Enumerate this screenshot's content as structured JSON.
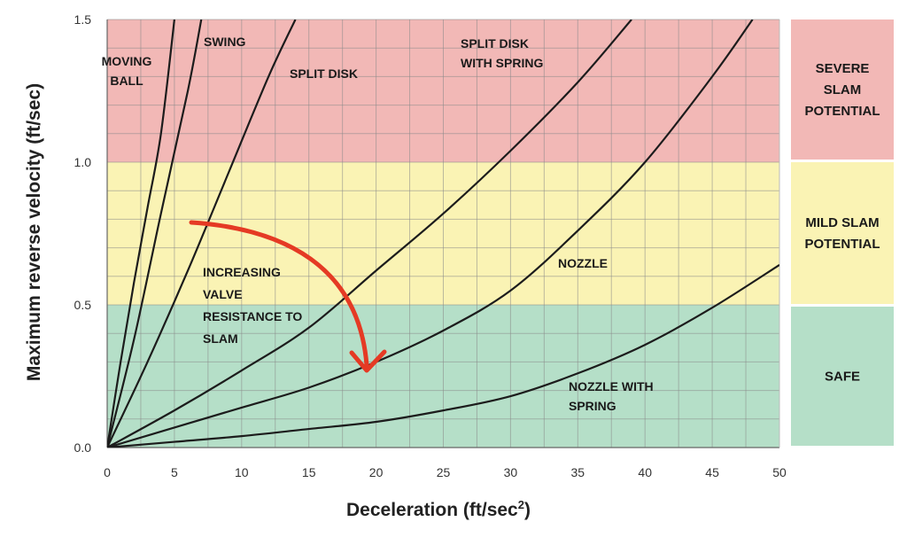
{
  "chart_data": {
    "type": "line",
    "xlabel": "Deceleration (ft/sec",
    "xlabel_sup": "2",
    "xlabel_tail": ")",
    "ylabel": "Maximum reverse velocity (ft/sec)",
    "xlim": [
      0,
      50
    ],
    "ylim": [
      0,
      1.5
    ],
    "x_ticks": [
      0,
      5,
      10,
      15,
      20,
      25,
      30,
      35,
      40,
      45,
      50
    ],
    "x_tick_labels": [
      "0",
      "5",
      "10",
      "15",
      "20",
      "25",
      "30",
      "35",
      "40",
      "45",
      "50"
    ],
    "y_ticks": [
      0,
      0.5,
      1.0,
      1.5
    ],
    "y_tick_labels": [
      "0.0",
      "0.5",
      "1.0",
      "1.5"
    ],
    "grid": true,
    "zones": [
      {
        "from": 1.0,
        "to": 1.5,
        "color": "#f2b8b6",
        "label_lines": [
          "SEVERE",
          "SLAM",
          "POTENTIAL"
        ]
      },
      {
        "from": 0.5,
        "to": 1.0,
        "color": "#faf3b4",
        "label_lines": [
          "MILD SLAM",
          "POTENTIAL"
        ]
      },
      {
        "from": 0.0,
        "to": 0.5,
        "color": "#b5dfc8",
        "label_lines": [
          "SAFE"
        ]
      }
    ],
    "series": [
      {
        "label_lines": [
          "MOVING",
          "BALL"
        ],
        "x": [
          0,
          1,
          2,
          3,
          4,
          5
        ],
        "y": [
          0,
          0.3,
          0.58,
          0.84,
          1.1,
          1.5
        ]
      },
      {
        "label_lines": [
          "SWING"
        ],
        "x": [
          0,
          2,
          4,
          6,
          7
        ],
        "y": [
          0,
          0.38,
          0.82,
          1.25,
          1.5
        ]
      },
      {
        "label_lines": [
          "SPLIT DISK"
        ],
        "x": [
          0,
          3,
          6,
          9,
          12,
          14
        ],
        "y": [
          0,
          0.3,
          0.62,
          0.96,
          1.3,
          1.5
        ]
      },
      {
        "label_lines": [
          "SPLIT DISK",
          "WITH SPRING"
        ],
        "x": [
          0,
          5,
          10,
          15,
          20,
          25,
          30,
          35,
          39
        ],
        "y": [
          0,
          0.13,
          0.27,
          0.42,
          0.62,
          0.82,
          1.04,
          1.28,
          1.5
        ]
      },
      {
        "label_lines": [
          "NOZZLE"
        ],
        "x": [
          0,
          5,
          10,
          15,
          20,
          25,
          30,
          35,
          40,
          45,
          48
        ],
        "y": [
          0,
          0.07,
          0.14,
          0.21,
          0.3,
          0.41,
          0.55,
          0.76,
          1.0,
          1.3,
          1.5
        ]
      },
      {
        "label_lines": [
          "NOZZLE WITH",
          "SPRING"
        ],
        "x": [
          0,
          5,
          10,
          15,
          20,
          25,
          30,
          35,
          40,
          45,
          50
        ],
        "y": [
          0,
          0.02,
          0.04,
          0.065,
          0.09,
          0.13,
          0.18,
          0.26,
          0.36,
          0.49,
          0.64
        ]
      }
    ],
    "annotation": {
      "text_lines": [
        "INCREASING",
        "VALVE",
        "RESISTANCE TO",
        "SLAM"
      ],
      "arrow_color": "#e53a24"
    }
  }
}
